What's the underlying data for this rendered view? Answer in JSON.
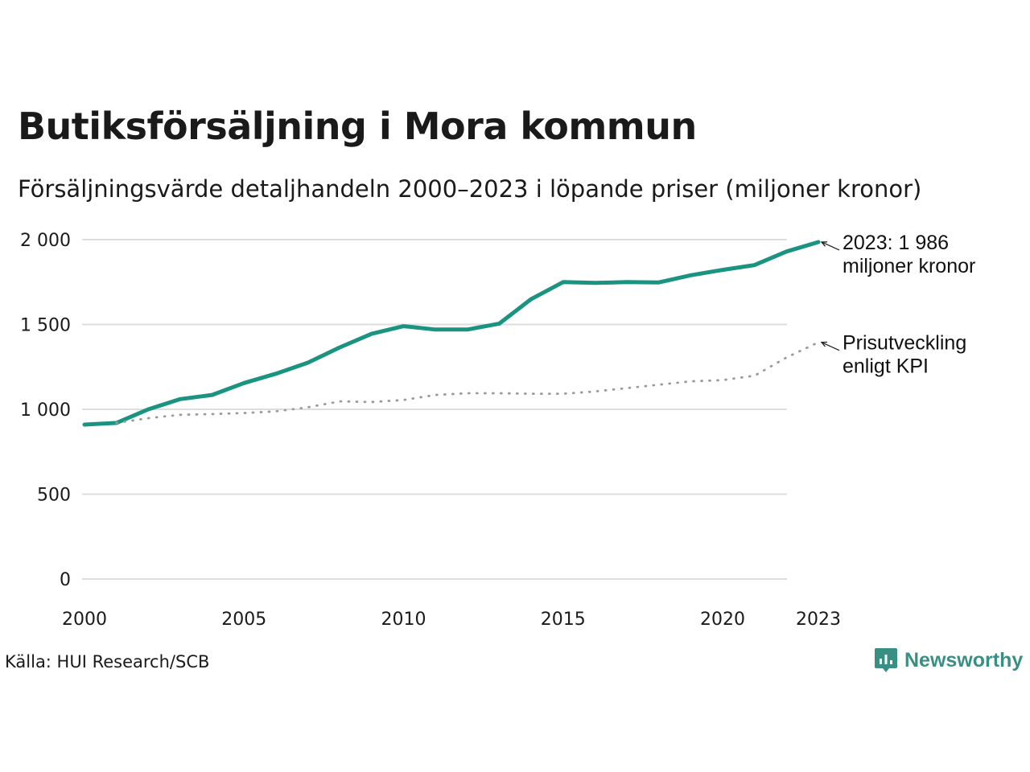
{
  "header": {
    "title": "Butiksförsäljning i Mora kommun",
    "subtitle": "Försäljningsvärde detaljhandeln 2000–2023 i löpande priser (miljoner kronor)"
  },
  "footer": {
    "source": "Källa: HUI Research/SCB",
    "brand": "Newsworthy",
    "brand_icon": "newsworthy-logo-icon"
  },
  "colors": {
    "sales_line": "#1a9480",
    "kpi_line": "#9b9b9b",
    "grid": "#dddddd",
    "brand": "#3a8f84"
  },
  "chart_data": {
    "type": "line",
    "title": "Butiksförsäljning i Mora kommun",
    "xlabel": "",
    "ylabel": "",
    "xlim": [
      2000,
      2023
    ],
    "ylim": [
      0,
      2000
    ],
    "grid": true,
    "y_ticks": [
      0,
      500,
      1000,
      1500,
      2000
    ],
    "y_tick_labels": [
      "0",
      "500",
      "1 000",
      "1 500",
      "2 000"
    ],
    "x_ticks": [
      2000,
      2005,
      2010,
      2015,
      2020,
      2023
    ],
    "x_tick_labels": [
      "2000",
      "2005",
      "2010",
      "2015",
      "2020",
      "2023"
    ],
    "x": [
      2000,
      2001,
      2002,
      2003,
      2004,
      2005,
      2006,
      2007,
      2008,
      2009,
      2010,
      2011,
      2012,
      2013,
      2014,
      2015,
      2016,
      2017,
      2018,
      2019,
      2020,
      2021,
      2022,
      2023
    ],
    "series": [
      {
        "name": "Försäljningsvärde",
        "style": "solid",
        "values": [
          910,
          920,
          1000,
          1060,
          1085,
          1155,
          1210,
          1275,
          1365,
          1445,
          1490,
          1470,
          1470,
          1505,
          1650,
          1750,
          1745,
          1750,
          1748,
          1790,
          1822,
          1850,
          1930,
          1986
        ]
      },
      {
        "name": "Prisutveckling enligt KPI",
        "style": "dotted",
        "values": [
          null,
          920,
          948,
          968,
          972,
          978,
          988,
          1012,
          1047,
          1043,
          1055,
          1085,
          1095,
          1095,
          1092,
          1092,
          1105,
          1125,
          1145,
          1165,
          1172,
          1198,
          1305,
          1395
        ]
      }
    ],
    "annotations": [
      {
        "series": 0,
        "lines": [
          "2023: 1 986",
          "miljoner kronor"
        ]
      },
      {
        "series": 1,
        "lines": [
          "Prisutveckling",
          "enligt KPI"
        ]
      }
    ]
  }
}
